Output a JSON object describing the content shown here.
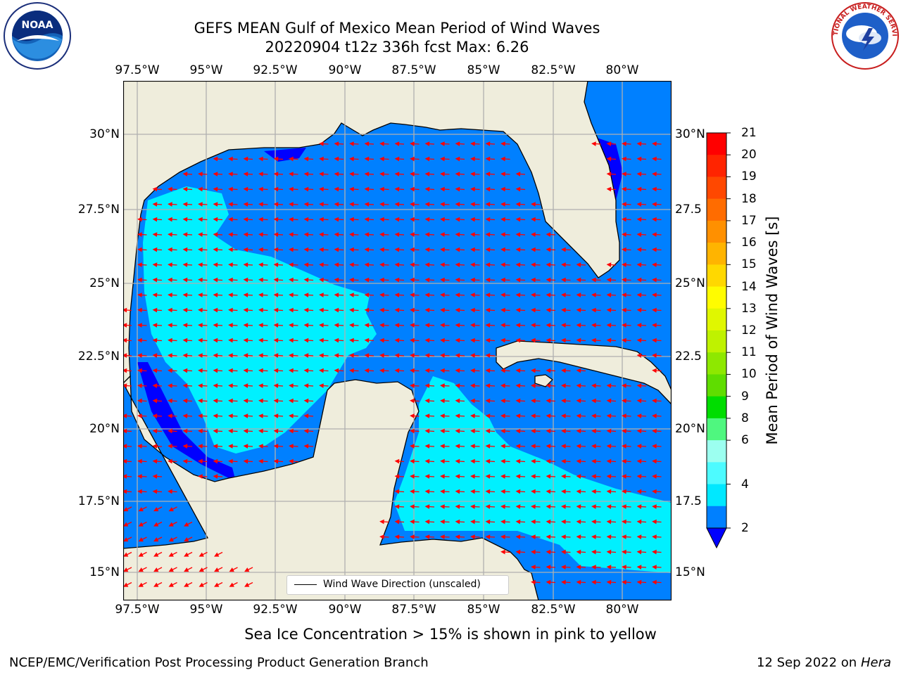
{
  "title": {
    "line1": "GEFS MEAN Gulf of Mexico Mean Period of Wind Waves",
    "line2": "20220904 t12z 336h fcst   Max: 6.26"
  },
  "axes": {
    "lon_labels": [
      "97.5°W",
      "95°W",
      "92.5°W",
      "90°W",
      "87.5°W",
      "85°W",
      "82.5°W",
      "80°W"
    ],
    "lat_labels_left": [
      "30°N",
      "27.5°N",
      "25°N",
      "22.5°N",
      "20°N",
      "17.5°N",
      "15°N"
    ],
    "lat_labels_right": [
      "30°N",
      "27.5",
      "25°N",
      "22.5",
      "20°N",
      "17.5",
      "15°N"
    ]
  },
  "colorbar": {
    "label": "Mean Period of Wind Waves [s]",
    "ticks": [
      "21",
      "20",
      "19",
      "18",
      "17",
      "16",
      "15",
      "14",
      "13",
      "12",
      "11",
      "10",
      "9",
      "8",
      "6",
      "4",
      "2"
    ],
    "colors": [
      "#ff0000",
      "#ff2400",
      "#ff4800",
      "#ff6c00",
      "#ff9000",
      "#ffb400",
      "#ffd800",
      "#fffc00",
      "#e0f700",
      "#bff200",
      "#8ee800",
      "#5fdd00",
      "#00dd00",
      "#4ff77f",
      "#9cfff0",
      "#4dfbff",
      "#00e8ff",
      "#0080ff"
    ],
    "extend_color": "#0000ff"
  },
  "legend": {
    "label": "Wind Wave Direction (unscaled)"
  },
  "note": "Sea Ice Concentration > 15% is shown in pink to yellow",
  "footer": {
    "left": "NCEP/EMC/Verification Post Processing Product Generation Branch",
    "right_prefix": "12 Sep 2022 on",
    "right_host": "Hera"
  },
  "logos": {
    "left": "NOAA",
    "right": "NATIONAL WEATHER SERVICE"
  },
  "map_colors": {
    "land": "#efeddc",
    "water_low": "#0080ff",
    "water_mid": "#00f0ff",
    "water_deep": "#0000ff",
    "arrow": "#ff0000",
    "grid": "#b0b0b0"
  }
}
